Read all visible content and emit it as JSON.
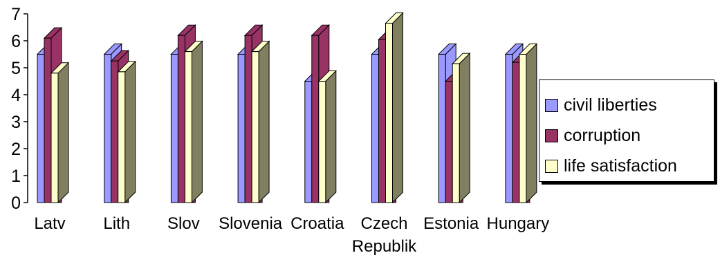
{
  "chart_data": {
    "type": "bar",
    "categories": [
      "Latv",
      "Lith",
      "Slov",
      "Slovenia",
      "Croatia",
      "Czech",
      "Estonia",
      "Hungary"
    ],
    "category_second_lines": [
      "",
      "",
      "",
      "",
      "",
      "Republik",
      "",
      ""
    ],
    "series": [
      {
        "name": "civil liberties",
        "values": [
          5.5,
          5.5,
          5.5,
          5.5,
          4.5,
          5.5,
          5.5,
          5.5
        ],
        "color": "#9999ff"
      },
      {
        "name": "corruption",
        "values": [
          6.1,
          5.25,
          6.2,
          6.2,
          6.2,
          6.05,
          4.5,
          5.2
        ],
        "color": "#993366"
      },
      {
        "name": "life satisfaction",
        "values": [
          4.8,
          4.85,
          5.6,
          5.6,
          4.5,
          6.65,
          5.15,
          5.5
        ],
        "color": "#ffffcc"
      }
    ],
    "side_color": "#808060",
    "ylim": [
      0,
      7
    ],
    "yticks": [
      "0",
      "1",
      "2",
      "3",
      "4",
      "5",
      "6",
      "7"
    ],
    "legend_position": "right"
  }
}
